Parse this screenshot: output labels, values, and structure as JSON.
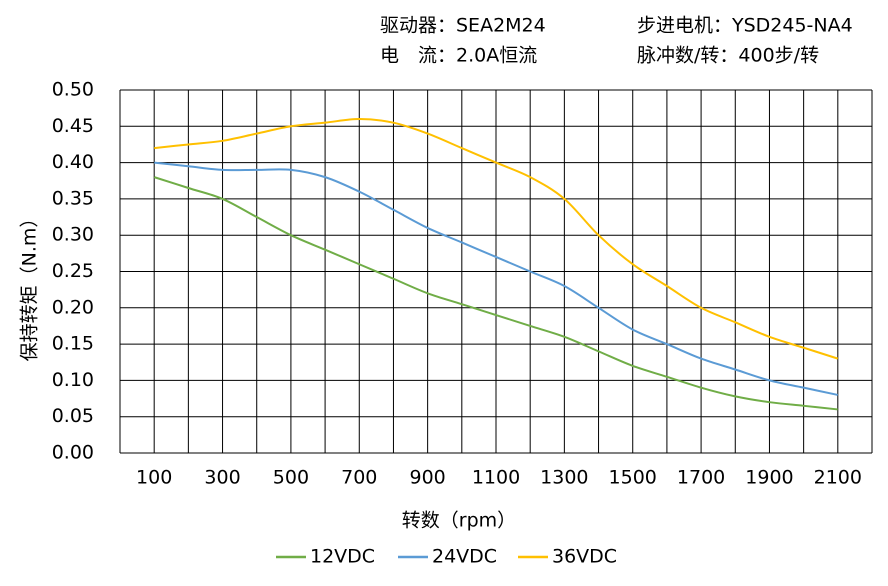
{
  "chart_data": {
    "type": "line",
    "header": [
      "驱动器：SEA2M24",
      "步进电机：YSD245-NA4",
      "电　流：2.0A恒流",
      "脉冲数/转：400步/转"
    ],
    "xlabel": "转数（rpm）",
    "ylabel": "保持转矩（N.m）",
    "x": [
      100,
      200,
      300,
      400,
      500,
      600,
      700,
      800,
      900,
      1000,
      1100,
      1200,
      1300,
      1400,
      1500,
      1600,
      1700,
      1800,
      1900,
      2000,
      2100
    ],
    "series": [
      {
        "name": "12VDC",
        "color": "#70ad47",
        "values": [
          0.38,
          0.365,
          0.35,
          0.325,
          0.3,
          0.28,
          0.26,
          0.24,
          0.22,
          0.205,
          0.19,
          0.175,
          0.16,
          0.14,
          0.12,
          0.105,
          0.09,
          0.078,
          0.07,
          0.065,
          0.06
        ]
      },
      {
        "name": "24VDC",
        "color": "#5b9bd5",
        "values": [
          0.4,
          0.395,
          0.39,
          0.39,
          0.39,
          0.38,
          0.36,
          0.335,
          0.31,
          0.29,
          0.27,
          0.25,
          0.23,
          0.2,
          0.17,
          0.15,
          0.13,
          0.115,
          0.1,
          0.09,
          0.08
        ]
      },
      {
        "name": "36VDC",
        "color": "#ffc000",
        "values": [
          0.42,
          0.425,
          0.43,
          0.44,
          0.45,
          0.455,
          0.46,
          0.455,
          0.44,
          0.42,
          0.4,
          0.38,
          0.35,
          0.3,
          0.26,
          0.23,
          0.2,
          0.18,
          0.16,
          0.145,
          0.13
        ]
      }
    ],
    "xlim": [
      0,
      2200
    ],
    "xticks": [
      100,
      300,
      500,
      700,
      900,
      1100,
      1300,
      1500,
      1700,
      1900,
      2100
    ],
    "xgrid": [
      0,
      100,
      200,
      300,
      400,
      500,
      600,
      700,
      800,
      900,
      1000,
      1100,
      1200,
      1300,
      1400,
      1500,
      1600,
      1700,
      1800,
      1900,
      2000,
      2100,
      2200
    ],
    "ylim": [
      0,
      0.5
    ],
    "yticks": [
      {
        "value": 0,
        "label": "0.00"
      },
      0.05,
      {
        "value": 0.1,
        "label": "0.10"
      },
      0.15,
      {
        "value": 0.2,
        "label": "0.20"
      },
      0.25,
      {
        "value": 0.3,
        "label": "0.30"
      },
      0.35,
      {
        "value": 0.4,
        "label": "0.40"
      },
      0.45,
      {
        "value": 0.5,
        "label": "0.50"
      }
    ],
    "grid": true,
    "smooth": true,
    "legend": "bottom"
  }
}
